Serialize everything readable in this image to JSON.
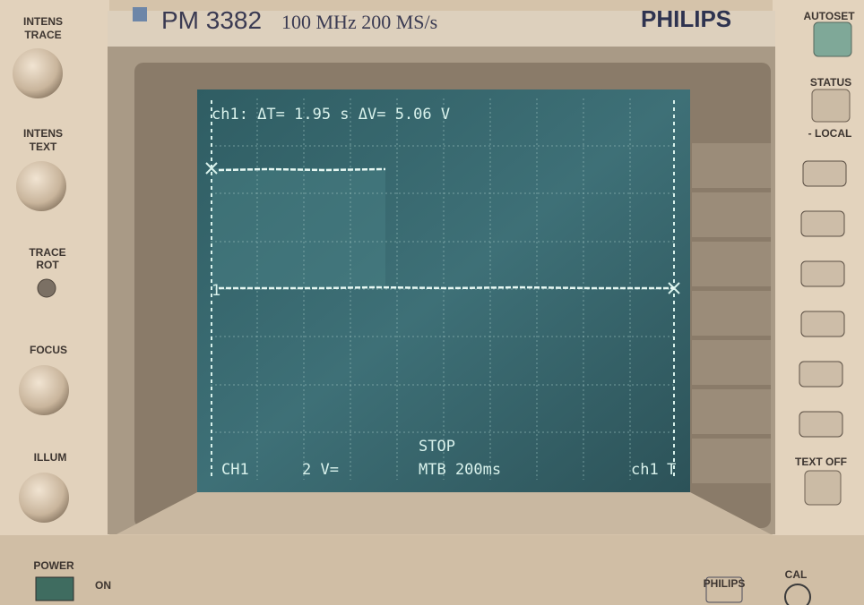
{
  "brand": {
    "model": "PM 3382",
    "spec": "100 MHz 200 MS/s",
    "maker": "PHILIPS"
  },
  "left_controls": [
    [
      "INTENS",
      "TRACE"
    ],
    [
      "INTENS",
      "TEXT"
    ],
    [
      "TRACE",
      "ROT"
    ],
    [
      "FOCUS"
    ],
    [
      "ILLUM"
    ]
  ],
  "right_controls": {
    "autoset": "AUTOSET",
    "status": "STATUS",
    "local": "- LOCAL",
    "text_off": "TEXT OFF"
  },
  "bottom": {
    "power": "POWER",
    "on": "ON",
    "logo": "PHILIPS",
    "cal": "CAL"
  },
  "screen": {
    "readout": "ch1: ΔT= 1.95 s ΔV= 5.06 V",
    "trace_marker": "1",
    "status": "STOP",
    "channel": "CH1",
    "sensitivity": "2 V=",
    "timebase": "MTB 200ms",
    "trigger": "ch1",
    "trigger_mark": "T"
  }
}
